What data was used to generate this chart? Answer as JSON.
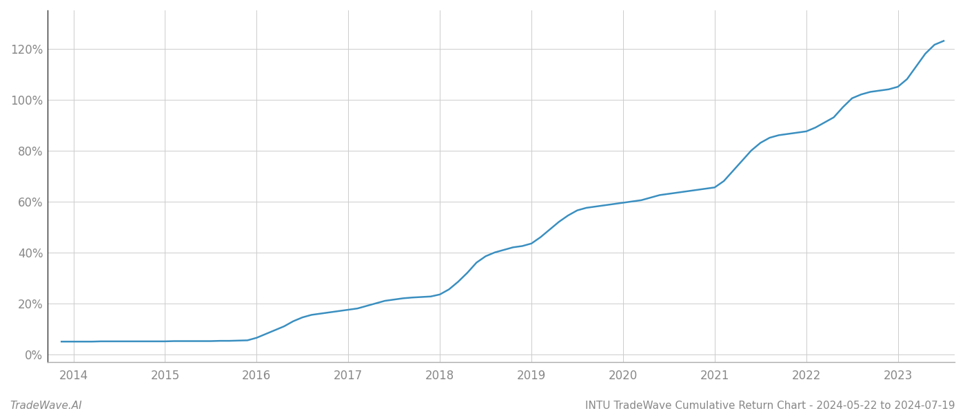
{
  "title": "INTU TradeWave Cumulative Return Chart - 2024-05-22 to 2024-07-19",
  "footer_left": "TradeWave.AI",
  "line_color": "#3a8fc0",
  "background_color": "#ffffff",
  "grid_color": "#cccccc",
  "x_years": [
    2014,
    2015,
    2016,
    2017,
    2018,
    2019,
    2020,
    2021,
    2022,
    2023
  ],
  "x_data": [
    2013.87,
    2014.0,
    2014.1,
    2014.2,
    2014.3,
    2014.4,
    2014.5,
    2014.6,
    2014.7,
    2014.8,
    2014.9,
    2015.0,
    2015.1,
    2015.2,
    2015.3,
    2015.4,
    2015.5,
    2015.6,
    2015.7,
    2015.8,
    2015.9,
    2016.0,
    2016.1,
    2016.2,
    2016.3,
    2016.4,
    2016.5,
    2016.6,
    2016.7,
    2016.8,
    2016.9,
    2017.0,
    2017.1,
    2017.2,
    2017.3,
    2017.4,
    2017.5,
    2017.6,
    2017.7,
    2017.8,
    2017.9,
    2018.0,
    2018.1,
    2018.2,
    2018.3,
    2018.4,
    2018.5,
    2018.6,
    2018.7,
    2018.8,
    2018.9,
    2019.0,
    2019.1,
    2019.2,
    2019.3,
    2019.4,
    2019.5,
    2019.6,
    2019.7,
    2019.8,
    2019.9,
    2020.0,
    2020.1,
    2020.2,
    2020.3,
    2020.4,
    2020.5,
    2020.6,
    2020.7,
    2020.8,
    2020.9,
    2021.0,
    2021.1,
    2021.2,
    2021.3,
    2021.4,
    2021.5,
    2021.6,
    2021.7,
    2021.8,
    2021.9,
    2022.0,
    2022.1,
    2022.2,
    2022.3,
    2022.4,
    2022.5,
    2022.6,
    2022.7,
    2022.8,
    2022.9,
    2023.0,
    2023.1,
    2023.2,
    2023.3,
    2023.4,
    2023.5
  ],
  "y_data": [
    5,
    5,
    5,
    5,
    5.1,
    5.1,
    5.1,
    5.1,
    5.1,
    5.1,
    5.1,
    5.1,
    5.2,
    5.2,
    5.2,
    5.2,
    5.2,
    5.3,
    5.3,
    5.4,
    5.5,
    6.5,
    8.0,
    9.5,
    11.0,
    13.0,
    14.5,
    15.5,
    16.0,
    16.5,
    17.0,
    17.5,
    18.0,
    19.0,
    20.0,
    21.0,
    21.5,
    22.0,
    22.3,
    22.5,
    22.7,
    23.5,
    25.5,
    28.5,
    32.0,
    36.0,
    38.5,
    40.0,
    41.0,
    42.0,
    42.5,
    43.5,
    46.0,
    49.0,
    52.0,
    54.5,
    56.5,
    57.5,
    58.0,
    58.5,
    59.0,
    59.5,
    60.0,
    60.5,
    61.5,
    62.5,
    63.0,
    63.5,
    64.0,
    64.5,
    65.0,
    65.5,
    68.0,
    72.0,
    76.0,
    80.0,
    83.0,
    85.0,
    86.0,
    86.5,
    87.0,
    87.5,
    89.0,
    91.0,
    93.0,
    97.0,
    100.5,
    102.0,
    103.0,
    103.5,
    104.0,
    105.0,
    108.0,
    113.0,
    118.0,
    121.5,
    123.0
  ],
  "yticks": [
    0,
    20,
    40,
    60,
    80,
    100,
    120
  ],
  "ylim": [
    -3,
    135
  ],
  "xlim": [
    2013.72,
    2023.62
  ],
  "title_fontsize": 11,
  "footer_fontsize": 11,
  "tick_fontsize": 12,
  "tick_color": "#888888",
  "left_spine_color": "#333333",
  "bottom_spine_color": "#aaaaaa",
  "line_width": 1.8
}
